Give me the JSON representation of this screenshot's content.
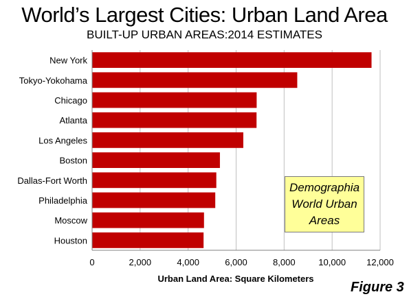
{
  "chart_data": {
    "type": "bar",
    "orientation": "horizontal",
    "title": "World’s Largest Cities: Urban Land Area",
    "subtitle": "BUILT-UP URBAN AREAS:2014 ESTIMATES",
    "xlabel": "Urban Land Area: Square Kilometers",
    "ylabel": "",
    "categories": [
      "New York",
      "Tokyo-Yokohama",
      "Chicago",
      "Atlanta",
      "Los Angeles",
      "Boston",
      "Dallas-Fort Worth",
      "Philadelphia",
      "Moscow",
      "Houston"
    ],
    "values": [
      11642,
      8547,
      6856,
      6851,
      6299,
      5325,
      5175,
      5131,
      4662,
      4644
    ],
    "xlim": [
      0,
      12000
    ],
    "xticks": [
      0,
      2000,
      4000,
      6000,
      8000,
      10000,
      12000
    ],
    "xtick_labels": [
      "0",
      "2,000",
      "4,000",
      "6,000",
      "8,000",
      "10,000",
      "12,000"
    ],
    "grid": true,
    "bar_color": "#c00000",
    "annotation": "Demographia World Urban Areas"
  },
  "note": {
    "lines": [
      "Demographia",
      "World Urban",
      "Areas"
    ],
    "background": "#ffff99"
  },
  "figure_label": "Figure 3"
}
